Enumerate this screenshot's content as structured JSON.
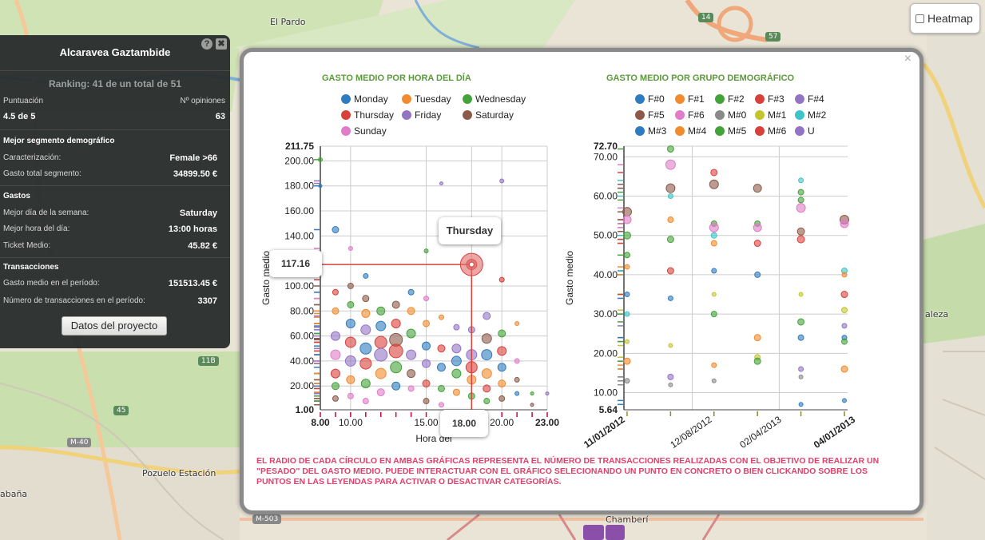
{
  "map": {
    "labels": [
      "El Pardo",
      "Pozuelo Estación",
      "Chamberí",
      "abaña",
      "aleza"
    ],
    "shields": [
      "M-40",
      "M-503",
      "11B",
      "45",
      "14",
      "57"
    ]
  },
  "heatmap": {
    "label": "Heatmap"
  },
  "panel": {
    "title": "Alcaravea Gaztambide",
    "help": "?",
    "close": "✖",
    "ranking": "Ranking: 41 de un total de 51",
    "score_label": "Puntuación",
    "opinions_label": "Nº opiniones",
    "score_value": "4.5 de 5",
    "opinions_value": "63",
    "segment_header": "Mejor segmento demográfico",
    "characterization_label": "Caracterización:",
    "characterization_value": "Female >66",
    "segment_total_label": "Gasto total segmento:",
    "segment_total_value": "34899.50 €",
    "spend_header": "Gastos",
    "best_day_label": "Mejor día de la semana:",
    "best_day_value": "Saturday",
    "best_hour_label": "Mejor hora del día:",
    "best_hour_value": "13:00 horas",
    "ticket_label": "Ticket Medio:",
    "ticket_value": "45.82 €",
    "tx_header": "Transacciones",
    "avg_spend_label": "Gasto medio en el período:",
    "avg_spend_value": "151513.45 €",
    "tx_count_label": "Número de transacciones en el período:",
    "tx_count_value": "3307",
    "button": "Datos del proyecto"
  },
  "modal": {
    "close": "×",
    "note": "EL RADIO DE CADA CÍRCULO EN AMBAS GRÁFICAS REPRESENTA EL NÚMERO DE TRANSACCIONES REALIZADAS CON EL OBJETIVO DE REALIZAR UN \"PESADO\" DEL GASTO MEDIO. PUEDE INTERACTUAR CON EL GRÁFICO SELECIONANDO UN PUNTO EN CONCRETO O BIEN CLICKANDO SOBRE LOS PUNTOS EN LAS LEYENDAS PARA ACTIVAR O DESACTIVAR CATEGORÍAS."
  },
  "chart_data": [
    {
      "type": "scatter",
      "title": "GASTO MEDIO POR HORA DEL DÍA",
      "xlabel": "Hora del",
      "ylabel": "Gasto medio",
      "xlim": [
        8,
        23
      ],
      "ylim": [
        1,
        211.75
      ],
      "x_ticks": [
        "8.00",
        "10.00",
        "15.00",
        "18.00",
        "20.00",
        "23.00"
      ],
      "y_ticks": [
        "1.00",
        "20.00",
        "40.00",
        "60.00",
        "80.00",
        "100.00",
        "117.16",
        "140.00",
        "160.00",
        "180.00",
        "200.00",
        "211.75"
      ],
      "legend": [
        {
          "name": "Monday",
          "color": "#2f7bbf"
        },
        {
          "name": "Tuesday",
          "color": "#f28a2e"
        },
        {
          "name": "Wednesday",
          "color": "#44a23a"
        },
        {
          "name": "Thursday",
          "color": "#d8413a"
        },
        {
          "name": "Friday",
          "color": "#9274c4"
        },
        {
          "name": "Saturday",
          "color": "#8c5a4a"
        },
        {
          "name": "Sunday",
          "color": "#e07cc8"
        }
      ],
      "tooltip": {
        "series": "Thursday",
        "x": "18.00",
        "y": "117.16"
      },
      "points": [
        [
          8,
          201,
          3,
          2
        ],
        [
          8,
          180,
          2,
          0
        ],
        [
          9,
          145,
          6,
          0
        ],
        [
          9,
          95,
          5,
          3
        ],
        [
          9,
          80,
          6,
          1
        ],
        [
          9,
          60,
          9,
          4
        ],
        [
          9,
          45,
          10,
          6
        ],
        [
          9,
          30,
          9,
          3
        ],
        [
          9,
          20,
          7,
          2
        ],
        [
          9,
          10,
          5,
          5
        ],
        [
          10,
          130,
          3,
          6
        ],
        [
          10,
          100,
          5,
          5
        ],
        [
          10,
          85,
          6,
          2
        ],
        [
          10,
          70,
          9,
          0
        ],
        [
          10,
          55,
          11,
          3
        ],
        [
          10,
          40,
          11,
          4
        ],
        [
          10,
          25,
          8,
          1
        ],
        [
          10,
          12,
          5,
          6
        ],
        [
          11,
          108,
          4,
          0
        ],
        [
          11,
          90,
          6,
          5
        ],
        [
          11,
          78,
          8,
          1
        ],
        [
          11,
          65,
          10,
          4
        ],
        [
          11,
          50,
          12,
          0
        ],
        [
          11,
          38,
          12,
          3
        ],
        [
          11,
          22,
          9,
          2
        ],
        [
          11,
          8,
          5,
          6
        ],
        [
          12,
          80,
          8,
          2
        ],
        [
          12,
          68,
          10,
          0
        ],
        [
          12,
          55,
          13,
          3
        ],
        [
          12,
          45,
          14,
          4
        ],
        [
          12,
          30,
          11,
          1
        ],
        [
          12,
          15,
          7,
          6
        ],
        [
          13,
          85,
          7,
          5
        ],
        [
          13,
          70,
          9,
          3
        ],
        [
          13,
          57,
          14,
          5
        ],
        [
          13,
          48,
          15,
          3
        ],
        [
          13,
          35,
          12,
          2
        ],
        [
          13,
          20,
          8,
          0
        ],
        [
          14,
          95,
          5,
          0
        ],
        [
          14,
          80,
          7,
          1
        ],
        [
          14,
          62,
          9,
          2
        ],
        [
          14,
          45,
          10,
          4
        ],
        [
          14,
          30,
          8,
          5
        ],
        [
          14,
          18,
          5,
          6
        ],
        [
          15,
          128,
          3,
          2
        ],
        [
          15,
          90,
          4,
          6
        ],
        [
          15,
          70,
          6,
          1
        ],
        [
          15,
          52,
          8,
          0
        ],
        [
          15,
          38,
          8,
          4
        ],
        [
          15,
          22,
          7,
          3
        ],
        [
          15,
          8,
          5,
          5
        ],
        [
          16,
          182,
          2,
          4
        ],
        [
          16,
          75,
          4,
          1
        ],
        [
          16,
          50,
          7,
          3
        ],
        [
          16,
          35,
          8,
          0
        ],
        [
          16,
          18,
          6,
          2
        ],
        [
          16,
          5,
          4,
          6
        ],
        [
          17,
          67,
          5,
          4
        ],
        [
          17,
          50,
          9,
          4
        ],
        [
          17,
          40,
          10,
          0
        ],
        [
          17,
          30,
          9,
          2
        ],
        [
          17,
          15,
          6,
          1
        ],
        [
          18,
          117.16,
          11,
          3
        ],
        [
          18,
          65,
          6,
          4
        ],
        [
          18,
          45,
          11,
          4
        ],
        [
          18,
          35,
          12,
          3
        ],
        [
          18,
          25,
          9,
          1
        ],
        [
          18,
          12,
          6,
          2
        ],
        [
          19,
          76,
          7,
          4
        ],
        [
          19,
          58,
          10,
          5
        ],
        [
          19,
          45,
          11,
          0
        ],
        [
          19,
          30,
          10,
          1
        ],
        [
          19,
          18,
          7,
          3
        ],
        [
          19,
          8,
          5,
          2
        ],
        [
          20,
          184,
          3,
          4
        ],
        [
          20,
          105,
          4,
          3
        ],
        [
          20,
          62,
          7,
          2
        ],
        [
          20,
          48,
          9,
          3
        ],
        [
          20,
          35,
          8,
          0
        ],
        [
          20,
          22,
          7,
          1
        ],
        [
          20,
          10,
          5,
          5
        ],
        [
          21,
          70,
          3,
          1
        ],
        [
          21,
          40,
          4,
          6
        ],
        [
          21,
          25,
          4,
          5
        ],
        [
          21,
          14,
          3,
          0
        ],
        [
          22,
          14,
          2,
          2
        ],
        [
          22,
          5,
          2,
          5
        ],
        [
          23,
          14,
          2,
          4
        ]
      ]
    },
    {
      "type": "scatter",
      "title": "GASTO MEDIO POR GRUPO DEMOGRÁFICO",
      "ylabel": "Gasto medio",
      "ylim": [
        5.64,
        72.7
      ],
      "x_ticks": [
        "11/01/2012",
        "12/08/2012",
        "02/04/2013",
        "04/01/2013"
      ],
      "y_ticks": [
        "5.64",
        "10.00",
        "20.00",
        "30.00",
        "40.00",
        "50.00",
        "60.00",
        "70.00",
        "72.70"
      ],
      "legend": [
        {
          "name": "F#0",
          "color": "#2f7bbf"
        },
        {
          "name": "F#1",
          "color": "#f28a2e"
        },
        {
          "name": "F#2",
          "color": "#44a23a"
        },
        {
          "name": "F#3",
          "color": "#d8413a"
        },
        {
          "name": "F#4",
          "color": "#9274c4"
        },
        {
          "name": "F#5",
          "color": "#8c5a4a"
        },
        {
          "name": "F#6",
          "color": "#e07cc8"
        },
        {
          "name": "M#0",
          "color": "#8a8a8a"
        },
        {
          "name": "M#1",
          "color": "#c4c42e"
        },
        {
          "name": "M#2",
          "color": "#3ec4c8"
        },
        {
          "name": "M#3",
          "color": "#2f7bbf"
        },
        {
          "name": "M#4",
          "color": "#f28a2e"
        },
        {
          "name": "M#5",
          "color": "#44a23a"
        },
        {
          "name": "M#6",
          "color": "#d8413a"
        },
        {
          "name": "U",
          "color": "#9274c4"
        }
      ],
      "points": [
        [
          0,
          56,
          9,
          5
        ],
        [
          0,
          54,
          8,
          6
        ],
        [
          0,
          50,
          7,
          2
        ],
        [
          0,
          45,
          5,
          12
        ],
        [
          0,
          42,
          4,
          11
        ],
        [
          0,
          35,
          4,
          10
        ],
        [
          0,
          30,
          4,
          9
        ],
        [
          0,
          23,
          3,
          8
        ],
        [
          0,
          18,
          6,
          1
        ],
        [
          0,
          13,
          4,
          7
        ],
        [
          1,
          72,
          6,
          2
        ],
        [
          1,
          68,
          10,
          6
        ],
        [
          1,
          62,
          9,
          5
        ],
        [
          1,
          60,
          4,
          9
        ],
        [
          1,
          54,
          5,
          1
        ],
        [
          1,
          49,
          6,
          12
        ],
        [
          1,
          41,
          6,
          13
        ],
        [
          1,
          34,
          4,
          0
        ],
        [
          1,
          22,
          3,
          8
        ],
        [
          1,
          14,
          5,
          4
        ],
        [
          1,
          12,
          3,
          7
        ],
        [
          2,
          66,
          6,
          3
        ],
        [
          2,
          63,
          9,
          5
        ],
        [
          2,
          53,
          5,
          2
        ],
        [
          2,
          52,
          9,
          6
        ],
        [
          2,
          50,
          5,
          9
        ],
        [
          2,
          48,
          5,
          11
        ],
        [
          2,
          41,
          4,
          10
        ],
        [
          2,
          35,
          3,
          8
        ],
        [
          2,
          30,
          5,
          12
        ],
        [
          2,
          17,
          4,
          1
        ],
        [
          2,
          13,
          3,
          7
        ],
        [
          3,
          62,
          8,
          5
        ],
        [
          3,
          53,
          5,
          12
        ],
        [
          3,
          52,
          8,
          6
        ],
        [
          3,
          48,
          6,
          3
        ],
        [
          3,
          40,
          5,
          0
        ],
        [
          3,
          24,
          6,
          1
        ],
        [
          3,
          19,
          5,
          8
        ],
        [
          3,
          18,
          6,
          2
        ],
        [
          4,
          64,
          4,
          9
        ],
        [
          4,
          61,
          5,
          12
        ],
        [
          4,
          59,
          5,
          2
        ],
        [
          4,
          57,
          9,
          6
        ],
        [
          4,
          51,
          7,
          5
        ],
        [
          4,
          49,
          7,
          3
        ],
        [
          4,
          35,
          3,
          8
        ],
        [
          4,
          28,
          6,
          2
        ],
        [
          4,
          24,
          5,
          0
        ],
        [
          4,
          16,
          4,
          4
        ],
        [
          4,
          14,
          3,
          7
        ],
        [
          4,
          7,
          3,
          10
        ],
        [
          5,
          54,
          9,
          5
        ],
        [
          5,
          53,
          8,
          6
        ],
        [
          5,
          41,
          5,
          9
        ],
        [
          5,
          40,
          4,
          1
        ],
        [
          5,
          35,
          6,
          3
        ],
        [
          5,
          31,
          5,
          8
        ],
        [
          5,
          27,
          4,
          4
        ],
        [
          5,
          24,
          4,
          0
        ],
        [
          5,
          23,
          5,
          12
        ],
        [
          5,
          16,
          6,
          1
        ],
        [
          5,
          8,
          3,
          10
        ]
      ]
    }
  ]
}
